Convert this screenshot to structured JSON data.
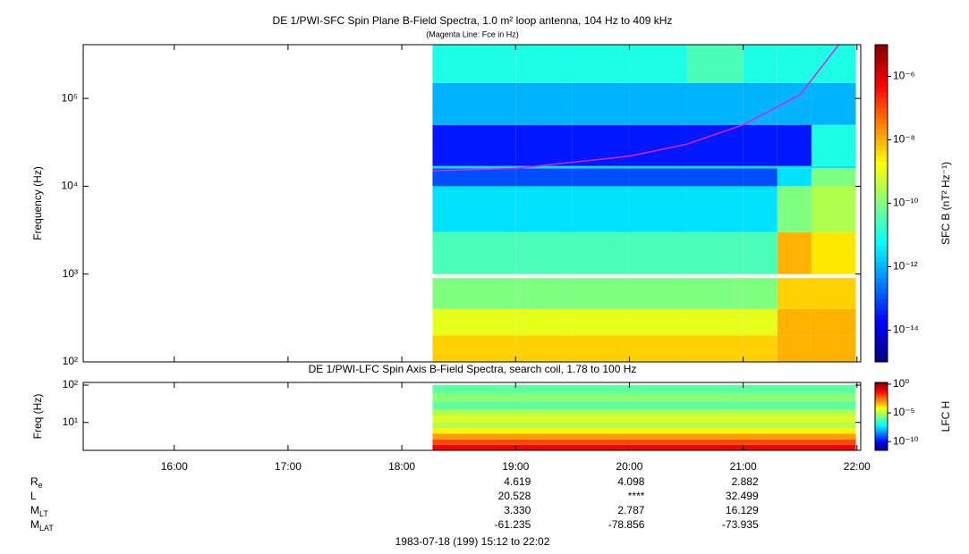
{
  "chart_data": [
    {
      "type": "heatmap",
      "title": "DE 1/PWI-SFC  Spin Plane B-Field Spectra, 1.0 m² loop antenna, 104 Hz to 409 kHz",
      "subtitle": "(Magenta Line: Fce in Hz)",
      "y_label": "Frequency (Hz)",
      "ylog": true,
      "xlim": [
        15.2,
        22.033
      ],
      "ylim": [
        100,
        409000
      ],
      "yticks": [
        {
          "value": 100,
          "label": "10²"
        },
        {
          "value": 1000,
          "label": "10³"
        },
        {
          "value": 10000,
          "label": "10⁴"
        },
        {
          "value": 100000,
          "label": "10⁵"
        }
      ],
      "x_bins": [
        18.27,
        19.0,
        19.5,
        20.0,
        20.5,
        21.0,
        21.3,
        21.6,
        21.99
      ],
      "y_bins": [
        100,
        200,
        400,
        900,
        1000,
        3000,
        10000,
        16000,
        17000,
        50000,
        150000,
        409000
      ],
      "z": [
        [
          5e-09,
          5e-09,
          5e-09,
          5e-09,
          5e-09,
          5e-09,
          1e-08,
          1e-08
        ],
        [
          1e-09,
          1e-09,
          1e-09,
          1e-09,
          1e-09,
          1e-09,
          1e-08,
          1e-08
        ],
        [
          1e-10,
          1e-10,
          1e-10,
          1e-10,
          1e-10,
          1e-10,
          5e-09,
          5e-09
        ],
        [
          null,
          null,
          null,
          null,
          null,
          null,
          null,
          null
        ],
        [
          3e-11,
          3e-11,
          3e-11,
          3e-11,
          3e-11,
          3e-11,
          1e-08,
          3e-09
        ],
        [
          3e-12,
          3e-12,
          3e-12,
          3e-12,
          3e-12,
          3e-12,
          1e-10,
          3e-10
        ],
        [
          1e-13,
          1e-13,
          1e-13,
          1e-13,
          1e-13,
          1e-13,
          3e-12,
          1e-10
        ],
        [
          3e-12,
          3e-12,
          3e-12,
          3e-12,
          3e-12,
          3e-12,
          3e-12,
          3e-12
        ],
        [
          3e-14,
          3e-14,
          3e-14,
          3e-14,
          3e-14,
          3e-14,
          3e-14,
          1e-11
        ],
        [
          1e-12,
          1e-12,
          1e-12,
          1e-12,
          1e-12,
          1e-12,
          1e-12,
          1e-12
        ],
        [
          1e-11,
          1e-11,
          1e-11,
          1e-11,
          3e-11,
          1e-11,
          1e-11,
          1e-11
        ]
      ],
      "colorbar_label": "SFC B (nT² Hz⁻¹)",
      "clim": [
        1e-15,
        1e-05
      ],
      "cticks": [
        {
          "value": 1e-14,
          "label": "10⁻¹⁴"
        },
        {
          "value": 1e-12,
          "label": "10⁻¹²"
        },
        {
          "value": 1e-10,
          "label": "10⁻¹⁰"
        },
        {
          "value": 1e-08,
          "label": "10⁻⁸"
        },
        {
          "value": 1e-06,
          "label": "10⁻⁶"
        }
      ],
      "line": {
        "color": "#e020e0",
        "x": [
          18.27,
          19.0,
          20.0,
          20.5,
          21.0,
          21.5,
          21.84
        ],
        "values": [
          15000,
          16000,
          22000,
          30000,
          50000,
          110000,
          409000
        ]
      }
    },
    {
      "type": "heatmap",
      "title": "DE 1/PWI-LFC  Spin Axis B-Field Spectra, search coil, 1.78 to 100 Hz",
      "y_label": "Freq (Hz)",
      "ylog": true,
      "xlim": [
        15.2,
        22.033
      ],
      "ylim": [
        1.78,
        118
      ],
      "yticks": [
        {
          "value": 10,
          "label": "10¹"
        },
        {
          "value": 100,
          "label": "10²"
        }
      ],
      "xticks": [
        {
          "value": 16,
          "label": "16:00"
        },
        {
          "value": 17,
          "label": "17:00"
        },
        {
          "value": 18,
          "label": "18:00"
        },
        {
          "value": 19,
          "label": "19:00"
        },
        {
          "value": 20,
          "label": "20:00"
        },
        {
          "value": 21,
          "label": "21:00"
        },
        {
          "value": 22,
          "label": "22:00"
        }
      ],
      "x_bins": [
        18.27,
        21.99
      ],
      "y_bins": [
        1.78,
        2.5,
        3.5,
        5,
        7,
        10,
        15,
        22,
        35,
        60,
        100
      ],
      "z": [
        [
          0.1
        ],
        [
          0.01
        ],
        [
          0.001
        ],
        [
          0.0001
        ],
        [
          1e-05
        ],
        [
          3e-05
        ],
        [
          1e-05
        ],
        [
          1e-06
        ],
        [
          3e-06
        ],
        [
          1e-06
        ]
      ],
      "colorbar_label": "LFC H",
      "clim": [
        3e-12,
        2
      ],
      "cticks": [
        {
          "value": 1,
          "label": "10⁰"
        },
        {
          "value": 1e-05,
          "label": "10⁻⁵"
        },
        {
          "value": 1e-10,
          "label": "10⁻¹⁰"
        }
      ]
    }
  ],
  "ephemeris": [
    {
      "label": "R",
      "sub": "e",
      "values": [
        "4.619",
        "4.098",
        "2.882"
      ]
    },
    {
      "label": "L",
      "values": [
        "20.528",
        "****",
        "32.499"
      ]
    },
    {
      "label": "M",
      "sub": "LT",
      "values": [
        "3.330",
        "2.787",
        "16.129"
      ]
    },
    {
      "label": "M",
      "sub": "LAT",
      "values": [
        "-61.235",
        "-78.856",
        "-73.935"
      ]
    }
  ],
  "footer": "1983-07-18 (199) 15:12 to 22:02"
}
